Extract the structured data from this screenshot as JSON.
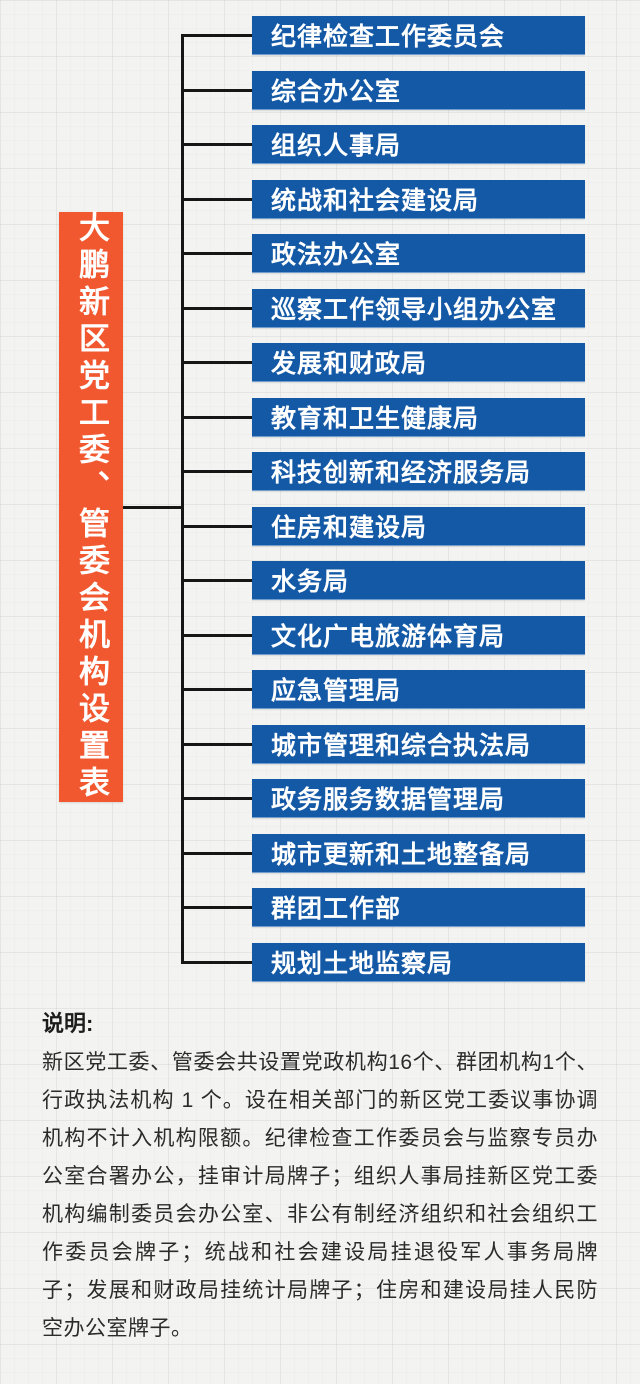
{
  "title": {
    "text": "大鹏新区党工委、管委会机构设置表"
  },
  "org_chart": {
    "departments": [
      {
        "label": "纪律检查工作委员会"
      },
      {
        "label": "综合办公室"
      },
      {
        "label": "组织人事局"
      },
      {
        "label": "统战和社会建设局"
      },
      {
        "label": "政法办公室"
      },
      {
        "label": "巡察工作领导小组办公室"
      },
      {
        "label": "发展和财政局"
      },
      {
        "label": "教育和卫生健康局"
      },
      {
        "label": "科技创新和经济服务局"
      },
      {
        "label": "住房和建设局"
      },
      {
        "label": "水务局"
      },
      {
        "label": "文化广电旅游体育局"
      },
      {
        "label": "应急管理局"
      },
      {
        "label": "城市管理和综合执法局"
      },
      {
        "label": "政务服务数据管理局"
      },
      {
        "label": "城市更新和土地整备局"
      },
      {
        "label": "群团工作部"
      },
      {
        "label": "规划土地监察局"
      }
    ]
  },
  "note": {
    "heading": "说明:",
    "body": "新区党工委、管委会共设置党政机构16个、群团机构1个、行政执法机构 1 个。设在相关部门的新区党工委议事协调机构不计入机构限额。纪律检查工作委员会与监察专员办公室合署办公，挂审计局牌子；组织人事局挂新区党工委机构编制委员会办公室、非公有制经济组织和社会组织工作委员会牌子；统战和社会建设局挂退役军人事务局牌子；发展和财政局挂统计局牌子；住房和建设局挂人民防空办公室牌子。"
  },
  "colors": {
    "accent_orange": "#F1582F",
    "bar_blue": "#1459A6",
    "connector_black": "#161616",
    "background": "#F3F3F1",
    "bar_text": "#FFFFFF",
    "note_text": "#2B2B2B"
  }
}
